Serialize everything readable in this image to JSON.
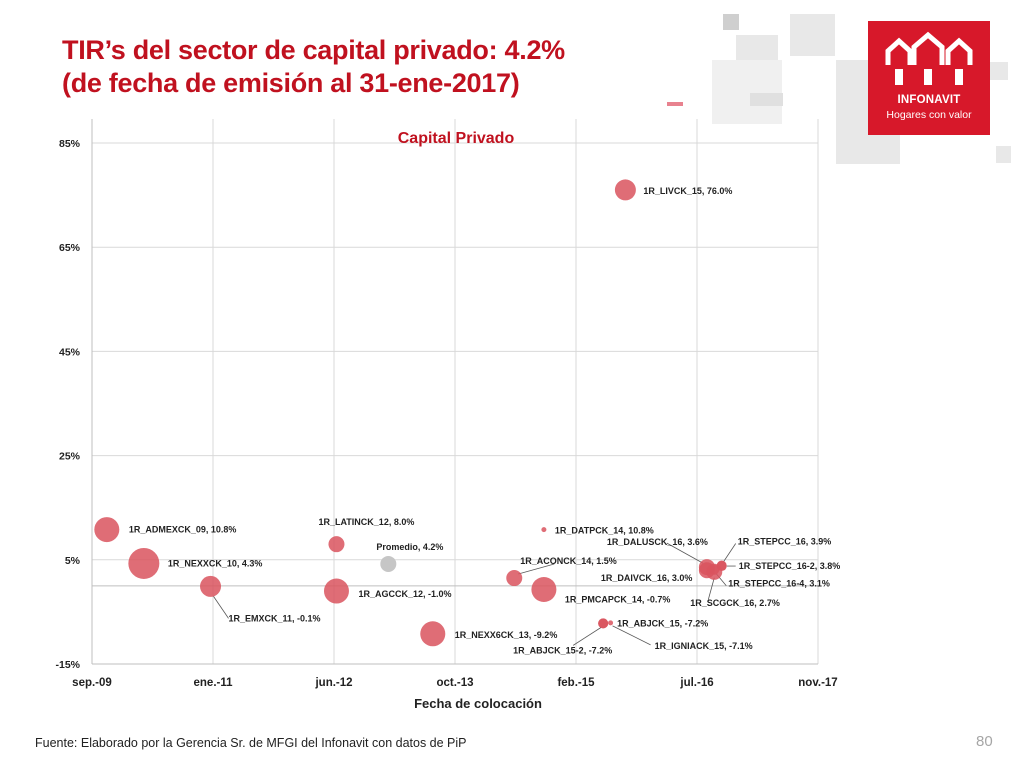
{
  "title": {
    "line1": "TIR’s del sector de capital privado: 4.2%",
    "line2": "(de fecha de emisión al 31-ene-2017)"
  },
  "logo": {
    "brand": "INFONAVIT",
    "slogan": "Hogares con valor",
    "color": "#d7182a"
  },
  "footer": {
    "source": "Fuente: Elaborado por la Gerencia Sr. de MFGI del Infonavit con datos de PiP",
    "page_number": "80"
  },
  "colors": {
    "title": "#c0111f",
    "bubble": "#d9545e",
    "average_bubble": "#c6c6c6",
    "grid": "#d9d9d9"
  },
  "chart_data": {
    "type": "scatter",
    "title": "Capital Privado",
    "xlabel": "Fecha de colocación",
    "ylabel": "",
    "x_ticks": [
      "sep.-09",
      "ene.-11",
      "jun.-12",
      "oct.-13",
      "feb.-15",
      "jul.-16",
      "nov.-17"
    ],
    "xlim": [
      "2009-09",
      "2017-11"
    ],
    "y_ticks": [
      "85%",
      "65%",
      "45%",
      "25%",
      "5%",
      "-15%"
    ],
    "ylim": [
      -15,
      85
    ],
    "grid": true,
    "points": [
      {
        "label": "1R_ADMEXCK_09, 10.8%",
        "date": "2009-11",
        "value": 10.8,
        "size": "large"
      },
      {
        "label": "1R_NEXXCK_10, 4.3%",
        "date": "2010-04",
        "value": 4.3,
        "size": "xlarge"
      },
      {
        "label": "1R_EMXCK_11, -0.1%",
        "date": "2011-01",
        "value": -0.1,
        "size": "medium"
      },
      {
        "label": "1R_LATINCK_12, 8.0%",
        "date": "2012-06",
        "value": 8.0,
        "size": "small"
      },
      {
        "label": "1R_AGCCK_12, -1.0%",
        "date": "2012-06",
        "value": -1.0,
        "size": "large"
      },
      {
        "label": "Promedio, 4.2%",
        "date": "2013-01",
        "value": 4.2,
        "size": "small",
        "average": true
      },
      {
        "label": "1R_NEXX6CK_13, -9.2%",
        "date": "2013-07",
        "value": -9.2,
        "size": "large"
      },
      {
        "label": "1R_ACONCK_14, 1.5%",
        "date": "2014-06",
        "value": 1.5,
        "size": "small"
      },
      {
        "label": "1R_DATPCK_14, 10.8%",
        "date": "2014-10",
        "value": 10.8,
        "size": "dot"
      },
      {
        "label": "1R_PMCAPCK_14, -0.7%",
        "date": "2014-10",
        "value": -0.7,
        "size": "large"
      },
      {
        "label": "1R_ABJCK_15-2, -7.2%",
        "date": "2015-06",
        "value": -7.2,
        "size": "tiny"
      },
      {
        "label": "1R_ABJCK_15, -7.2%",
        "date": "2015-06",
        "value": -7.2,
        "size": "tiny"
      },
      {
        "label": "1R_IGNIACK_15, -7.1%",
        "date": "2015-07",
        "value": -7.1,
        "size": "dot"
      },
      {
        "label": "1R_LIVCK_15, 76.0%",
        "date": "2015-09",
        "value": 76.0,
        "size": "medium"
      },
      {
        "label": "1R_DALUSCK_16, 3.6%",
        "date": "2016-08",
        "value": 3.6,
        "size": "small"
      },
      {
        "label": "1R_DAIVCK_16, 3.0%",
        "date": "2016-08",
        "value": 3.0,
        "size": "small"
      },
      {
        "label": "1R_SCGCK_16, 2.7%",
        "date": "2016-09",
        "value": 2.7,
        "size": "small"
      },
      {
        "label": "1R_STEPCC_16, 3.9%",
        "date": "2016-10",
        "value": 3.9,
        "size": "tiny"
      },
      {
        "label": "1R_STEPCC_16-2, 3.8%",
        "date": "2016-10",
        "value": 3.8,
        "size": "tiny"
      },
      {
        "label": "1R_STEPCC_16-4, 3.1%",
        "date": "2016-09",
        "value": 3.1,
        "size": "tiny"
      }
    ]
  }
}
